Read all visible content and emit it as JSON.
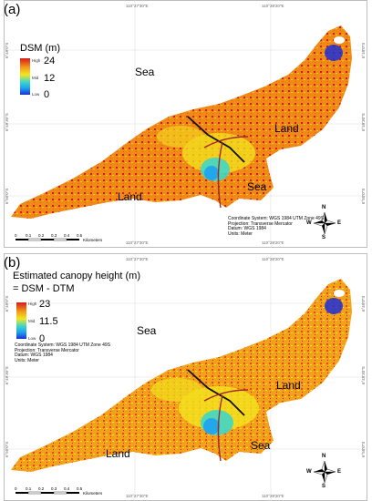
{
  "panels": [
    {
      "label": "(a)",
      "legend": {
        "title_lines": [
          "DSM (m)"
        ],
        "high_tag": "High",
        "high_value": "24",
        "mid_tag": "Mid",
        "mid_value": "12",
        "low_tag": "Low",
        "low_value": "0"
      },
      "region_labels": [
        "Sea",
        "Land",
        "Land",
        "Sea"
      ],
      "coordinate_info": [
        "Coordinate System: WGS 1984 UTM Zone 49S",
        "Projection: Transverse Mercator",
        "Datum: WGS 1984",
        "Units: Meter"
      ],
      "grid_top": [
        "110°27'30\"E",
        "110°28'20\"E"
      ],
      "grid_bottom": [
        "110°27'30\"E",
        "110°28'20\"E"
      ],
      "grid_left": [
        "6°49'0\"S",
        "6°49'30\"S",
        "6°50'0\"S"
      ],
      "grid_right": [
        "6°49'0\"S",
        "6°49'30\"S",
        "6°50'0\"S"
      ],
      "scale": {
        "ticks": [
          "0",
          "0.1",
          "0.2",
          "0.3",
          "0.4",
          "0.5"
        ],
        "unit": "Kilometers"
      },
      "compass": {
        "n": "N",
        "e": "E",
        "s": "S",
        "w": "W"
      }
    },
    {
      "label": "(b)",
      "legend": {
        "title_lines": [
          "Estimated canopy height (m)",
          "= DSM - DTM"
        ],
        "high_tag": "High",
        "high_value": "23",
        "mid_tag": "Mid",
        "mid_value": "11.5",
        "low_tag": "Low",
        "low_value": "0"
      },
      "region_labels": [
        "Sea",
        "Land",
        "Land",
        "Sea"
      ],
      "coordinate_info": [
        "Coordinate System: WGS 1984 UTM Zone 49S",
        "Projection: Transverse Mercator",
        "Datum: WGS 1984",
        "Units: Meter"
      ],
      "grid_top": [
        "110°27'30\"E",
        "110°28'20\"E"
      ],
      "grid_bottom": [
        "110°27'30\"E",
        "110°28'20\"E"
      ],
      "grid_left": [
        "6°49'0\"S",
        "6°49'30\"S",
        "6°50'0\"S"
      ],
      "grid_right": [
        "6°49'0\"S",
        "6°49'30\"S",
        "6°50'0\"S"
      ],
      "scale": {
        "ticks": [
          "0",
          "0.1",
          "0.2",
          "0.3",
          "0.4",
          "0.5"
        ],
        "unit": "Kilometers"
      },
      "compass": {
        "n": "N",
        "e": "E",
        "s": "S",
        "w": "W"
      }
    }
  ],
  "colors": {
    "high": "#d7191c",
    "upper": "#f39b1a",
    "mid": "#f2e61e",
    "lower": "#3fd6c8",
    "low": "#1d2fd6",
    "road_black": "#111111",
    "road_red": "#a1272a"
  }
}
